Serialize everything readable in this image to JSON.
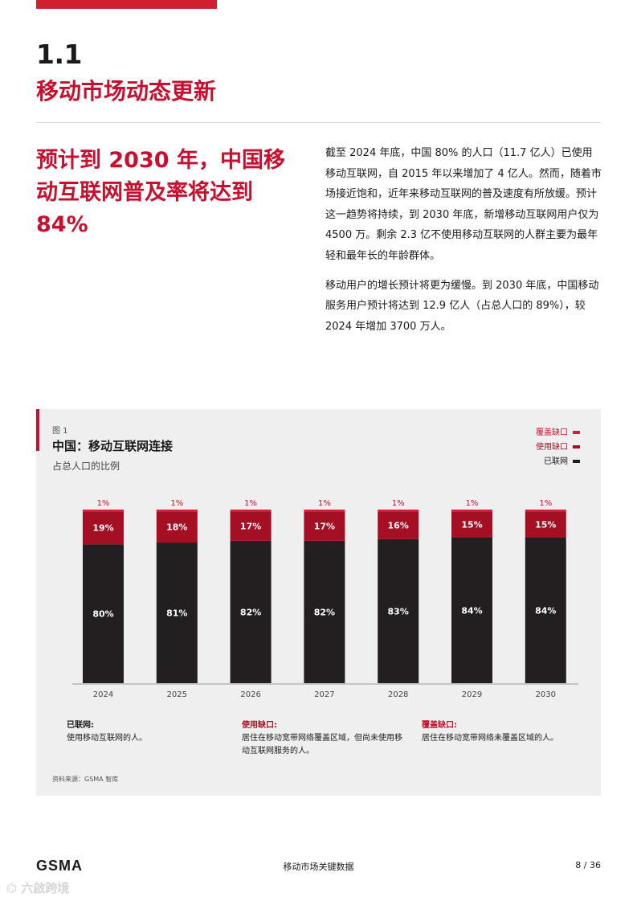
{
  "section": {
    "number": "1.1",
    "title": "移动市场动态更新"
  },
  "headline": "预计到 2030 年，中国移动互联网普及率将达到 84%",
  "body": [
    "截至 2024 年底，中国 80% 的人口（11.7 亿人）已使用移动互联网，自 2015 年以来增加了 4 亿人。然而，随着市场接近饱和，近年来移动互联网的普及速度有所放缓。预计这一趋势将持续，到 2030 年底，新增移动互联网用户仅为 4500 万。剩余 2.3 亿不使用移动互联网的人群主要为最年轻和最年长的年龄群体。",
    "移动用户的增长预计将更为缓慢。到 2030 年底，中国移动服务用户预计将达到 12.9 亿人（占总人口的 89%），较 2024 年增加 3700 万人。"
  ],
  "figure": {
    "label": "图 1",
    "title": "中国：移动互联网连接",
    "subtitle": "占总人口的比例",
    "source": "资料来源：GSMA 智库"
  },
  "chart_data": {
    "type": "bar",
    "stacked": true,
    "categories": [
      "2024",
      "2025",
      "2026",
      "2027",
      "2028",
      "2029",
      "2030"
    ],
    "series": [
      {
        "name": "已联网",
        "color": "#231f20",
        "values": [
          80,
          81,
          82,
          82,
          83,
          84,
          84
        ],
        "labels": [
          "80%",
          "81%",
          "82%",
          "82%",
          "83%",
          "84%",
          "84%"
        ]
      },
      {
        "name": "使用缺口",
        "color": "#a50f23",
        "values": [
          19,
          18,
          17,
          17,
          16,
          15,
          15
        ],
        "labels": [
          "19%",
          "18%",
          "17%",
          "17%",
          "16%",
          "15%",
          "15%"
        ]
      },
      {
        "name": "覆盖缺口",
        "color": "#d81e3a",
        "values": [
          1,
          1,
          1,
          1,
          1,
          1,
          1
        ],
        "labels": [
          "1%",
          "1%",
          "1%",
          "1%",
          "1%",
          "1%",
          "1%"
        ]
      }
    ],
    "ylim": [
      0,
      100
    ],
    "legend_position": "top-right",
    "grid": false
  },
  "legend": [
    {
      "label": "覆盖缺口",
      "color": "#d81e3a"
    },
    {
      "label": "使用缺口",
      "color": "#a50f23"
    },
    {
      "label": "已联网",
      "color": "#231f20"
    }
  ],
  "definitions": [
    {
      "heading": "已联网:",
      "text": "使用移动互联网的人。",
      "color": "#1a1a1a"
    },
    {
      "heading": "使用缺口:",
      "text": "居住在移动宽带网络覆盖区域，但尚未使用移动互联网服务的人。",
      "color": "#a50f23"
    },
    {
      "heading": "覆盖缺口:",
      "text": "居住在移动宽带网络未覆盖区域的人。",
      "color": "#c8102e"
    }
  ],
  "footer": {
    "logo": "GSMA",
    "center": "移动市场关键数据",
    "page": "8 / 36"
  },
  "watermark": "六啟跨境"
}
